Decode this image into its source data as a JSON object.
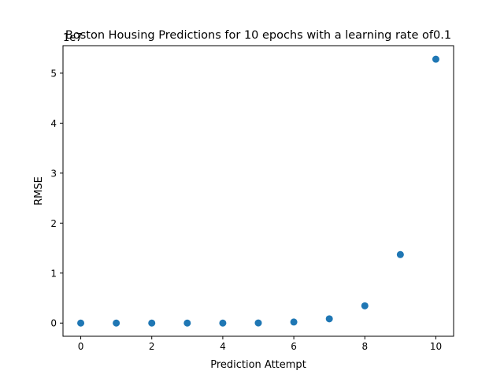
{
  "chart_data": {
    "type": "scatter",
    "title": "Boston Housing Predictions for 10 epochs with a learning rate of0.1",
    "xlabel": "Prediction Attempt",
    "ylabel": "RMSE",
    "offset_label": "1e7",
    "x": [
      0,
      1,
      2,
      3,
      4,
      5,
      6,
      7,
      8,
      9,
      10
    ],
    "y": [
      0,
      0,
      0,
      0,
      0,
      20000,
      210000,
      850000,
      3450000,
      13700000,
      52800000
    ],
    "xlim": [
      -0.5,
      10.5
    ],
    "ylim": [
      -2640000,
      55500000
    ],
    "xticks": [
      0,
      2,
      4,
      6,
      8,
      10
    ],
    "xtick_labels": [
      "0",
      "2",
      "4",
      "6",
      "8",
      "10"
    ],
    "yticks": [
      0,
      10000000,
      20000000,
      30000000,
      40000000,
      50000000
    ],
    "ytick_labels": [
      "0",
      "1",
      "2",
      "3",
      "4",
      "5"
    ],
    "marker_color": "#1f77b4",
    "grid": false,
    "legend": "none"
  }
}
